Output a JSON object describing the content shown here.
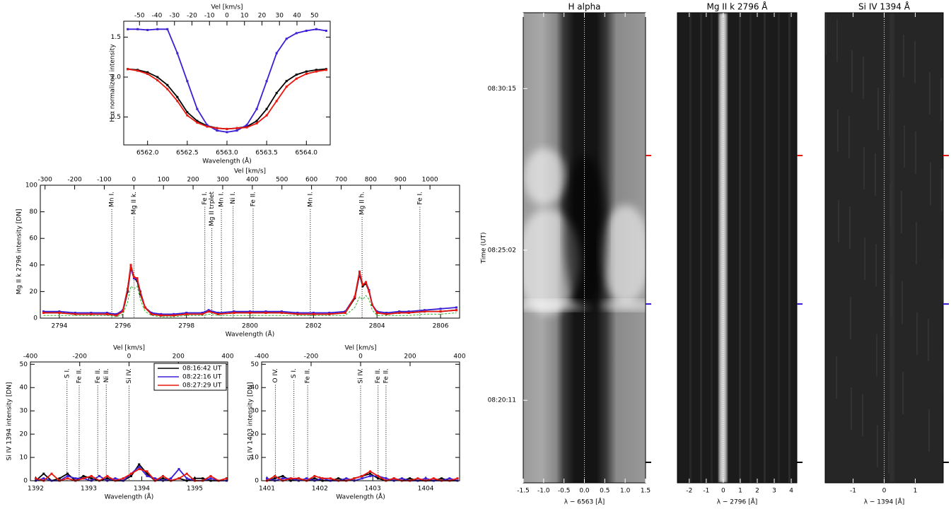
{
  "chart_data": [
    {
      "type": "line",
      "xlabel": "Wavelength (Å)",
      "ylabel": "H α normalized intensity",
      "x2label": "Vel [km/s]",
      "xlim": [
        6561.7,
        6564.3
      ],
      "xticks": [
        {
          "value": 6562,
          "label": "6562.0"
        },
        6562.5,
        {
          "value": 6563,
          "label": "6563.0"
        },
        6563.5,
        {
          "value": 6564,
          "label": "6564.0"
        }
      ],
      "x2lim": [
        -59,
        59
      ],
      "x2ticks": [
        -50,
        -40,
        -30,
        -20,
        -10,
        0,
        10,
        20,
        30,
        40,
        50
      ],
      "ylim": [
        0.15,
        1.7
      ],
      "yticks": [
        0.5,
        {
          "value": 1,
          "label": "1.0"
        },
        1.5
      ],
      "x": [
        6561.75,
        6561.875,
        6562.0,
        6562.125,
        6562.25,
        6562.375,
        6562.5,
        6562.625,
        6562.75,
        6562.875,
        6563.0,
        6563.125,
        6563.25,
        6563.375,
        6563.5,
        6563.625,
        6563.75,
        6563.875,
        6564.0,
        6564.125,
        6564.25
      ],
      "series": [
        {
          "color": "#000000",
          "values": [
            1.1,
            1.09,
            1.06,
            1.0,
            0.9,
            0.75,
            0.56,
            0.45,
            0.39,
            0.36,
            0.35,
            0.36,
            0.38,
            0.45,
            0.6,
            0.8,
            0.95,
            1.03,
            1.07,
            1.09,
            1.1
          ]
        },
        {
          "color": "#3a1fd6",
          "values": [
            1.6,
            1.6,
            1.59,
            1.6,
            1.6,
            1.3,
            0.95,
            0.6,
            0.4,
            0.33,
            0.31,
            0.33,
            0.4,
            0.6,
            0.95,
            1.3,
            1.48,
            1.55,
            1.58,
            1.6,
            1.58
          ]
        },
        {
          "color": "#e8160c",
          "values": [
            1.1,
            1.08,
            1.04,
            0.96,
            0.85,
            0.7,
            0.52,
            0.43,
            0.38,
            0.36,
            0.35,
            0.36,
            0.37,
            0.42,
            0.52,
            0.7,
            0.88,
            0.98,
            1.04,
            1.07,
            1.09
          ]
        }
      ]
    },
    {
      "type": "line",
      "xlabel": "Wavelength (Å)",
      "ylabel": "Mg II k 2796 intensity [DN]",
      "x2label": "Vel [km/s]",
      "xlim": [
        2793.4,
        2806.6
      ],
      "xticks": [
        2794,
        2796,
        2798,
        2800,
        2802,
        2804,
        2806
      ],
      "x2lim": [
        -316,
        1100
      ],
      "x2ticks": [
        -300,
        -200,
        -100,
        0,
        100,
        200,
        300,
        400,
        500,
        600,
        700,
        800,
        900,
        1000
      ],
      "ylim": [
        0,
        100
      ],
      "yticks": [
        0,
        20,
        40,
        60,
        80,
        100
      ],
      "x": [
        2793.5,
        2794.0,
        2794.5,
        2795.0,
        2795.5,
        2795.8,
        2796.0,
        2796.15,
        2796.25,
        2796.35,
        2796.45,
        2796.55,
        2796.7,
        2796.9,
        2797.2,
        2797.6,
        2798.0,
        2798.5,
        2798.7,
        2799.0,
        2799.5,
        2800.0,
        2800.5,
        2801.0,
        2801.5,
        2802.0,
        2802.5,
        2803.0,
        2803.3,
        2803.45,
        2803.55,
        2803.65,
        2803.75,
        2803.85,
        2804.0,
        2804.3,
        2804.7,
        2805.0,
        2805.5,
        2806.0,
        2806.5
      ],
      "series": [
        {
          "color": "#000000",
          "values": [
            4,
            4,
            3,
            3,
            3,
            2,
            5,
            20,
            38,
            30,
            28,
            18,
            8,
            3,
            2,
            2,
            3,
            3,
            5,
            3,
            4,
            4,
            4,
            4,
            3,
            3,
            3,
            4,
            15,
            33,
            24,
            26,
            20,
            10,
            4,
            3,
            4,
            4,
            5,
            5,
            6
          ]
        },
        {
          "color": "#3a1fd6",
          "values": [
            5,
            5,
            4,
            4,
            4,
            3,
            6,
            22,
            38,
            30,
            29,
            20,
            8,
            4,
            3,
            3,
            4,
            4,
            6,
            4,
            5,
            5,
            5,
            5,
            4,
            4,
            4,
            5,
            16,
            34,
            25,
            27,
            21,
            10,
            5,
            4,
            5,
            5,
            6,
            7,
            8
          ]
        },
        {
          "color": "#e8160c",
          "values": [
            4,
            4,
            3,
            3,
            3,
            2,
            5,
            22,
            40,
            31,
            30,
            19,
            8,
            3,
            2,
            2,
            3,
            3,
            5,
            3,
            4,
            4,
            4,
            4,
            3,
            3,
            3,
            4,
            16,
            35,
            25,
            27,
            20,
            10,
            4,
            3,
            4,
            4,
            5,
            5,
            6
          ]
        },
        {
          "color": "#2db52d",
          "dash": true,
          "values": [
            2,
            2,
            2,
            2,
            2,
            1,
            3,
            12,
            24,
            22,
            24,
            14,
            5,
            2,
            1,
            1,
            2,
            2,
            3,
            2,
            2,
            2,
            2,
            2,
            2,
            2,
            2,
            2,
            8,
            16,
            14,
            17,
            14,
            6,
            2,
            2,
            2,
            2,
            3,
            3,
            4
          ]
        }
      ],
      "lines": [
        {
          "label": "Mn I.",
          "x": 2795.65
        },
        {
          "label": "Mg II k.",
          "x": 2796.35
        },
        {
          "label": "Fe I.",
          "x": 2798.58
        },
        {
          "label": "Mg II trplet",
          "x": 2798.8
        },
        {
          "label": "Mn I.",
          "x": 2799.1
        },
        {
          "label": "Ni I.",
          "x": 2799.47
        },
        {
          "label": "Fe II.",
          "x": 2800.1
        },
        {
          "label": "Mn I.",
          "x": 2801.9
        },
        {
          "label": "Mg II h.",
          "x": 2803.53
        },
        {
          "label": "Fe I.",
          "x": 2805.35
        }
      ]
    },
    {
      "type": "line",
      "xlabel": "Wavelength (Å)",
      "ylabel": "Si IV 1394 intensity [DN]",
      "x2label": "Vel [km/s]",
      "legend": true,
      "xlim": [
        1391.9,
        1395.62
      ],
      "xticks": [
        1392,
        1393,
        1394,
        1395
      ],
      "x2lim": [
        -400,
        400
      ],
      "x2ticks": [
        -400,
        -200,
        0,
        200,
        400
      ],
      "ylim": [
        0,
        51
      ],
      "yticks": [
        0,
        10,
        20,
        30,
        40,
        50
      ],
      "x": [
        1392.0,
        1392.15,
        1392.3,
        1392.45,
        1392.6,
        1392.75,
        1392.9,
        1393.05,
        1393.2,
        1393.35,
        1393.5,
        1393.65,
        1393.8,
        1393.95,
        1394.1,
        1394.25,
        1394.4,
        1394.55,
        1394.7,
        1394.85,
        1395.0,
        1395.15,
        1395.3,
        1395.45,
        1395.6
      ],
      "series": [
        {
          "name": "08:16:42 UT",
          "color": "#000000",
          "values": [
            0,
            3,
            0,
            1,
            3,
            0,
            2,
            1,
            0,
            1,
            0,
            0,
            2,
            7,
            3,
            0,
            1,
            0,
            1,
            0,
            1,
            1,
            0,
            0,
            1
          ]
        },
        {
          "name": "08:22:16 UT",
          "color": "#3a1fd6",
          "values": [
            0,
            1,
            0,
            0,
            2,
            1,
            1,
            0,
            2,
            0,
            1,
            0,
            3,
            6,
            2,
            1,
            0,
            1,
            5,
            1,
            0,
            0,
            1,
            0,
            0
          ]
        },
        {
          "name": "08:27:29 UT",
          "color": "#e8160c",
          "values": [
            1,
            0,
            3,
            0,
            1,
            0,
            1,
            2,
            0,
            2,
            0,
            1,
            3,
            5,
            4,
            0,
            2,
            0,
            1,
            3,
            0,
            0,
            2,
            0,
            1
          ]
        }
      ],
      "lines": [
        {
          "label": "S I.",
          "x": 1392.59
        },
        {
          "label": "Fe II.",
          "x": 1392.82
        },
        {
          "label": "Fe II.",
          "x": 1393.17
        },
        {
          "label": "Ni II.",
          "x": 1393.33
        },
        {
          "label": "Si IV.",
          "x": 1393.76
        }
      ]
    },
    {
      "type": "line",
      "xlabel": "Wavelength (Å)",
      "ylabel": "Si IV 1403 intensity [DN]",
      "x2label": "Vel [km/s]",
      "xlim": [
        1400.9,
        1404.64
      ],
      "xticks": [
        1401,
        1402,
        1403,
        1404
      ],
      "x2lim": [
        -400,
        400
      ],
      "x2ticks": [
        -400,
        -200,
        0,
        200,
        400
      ],
      "ylim": [
        0,
        51
      ],
      "yticks": [
        0,
        10,
        20,
        30,
        40,
        50
      ],
      "x": [
        1401.0,
        1401.15,
        1401.3,
        1401.45,
        1401.6,
        1401.75,
        1401.9,
        1402.05,
        1402.2,
        1402.35,
        1402.5,
        1402.65,
        1402.8,
        1402.95,
        1403.1,
        1403.25,
        1403.4,
        1403.55,
        1403.7,
        1403.85,
        1404.0,
        1404.15,
        1404.3,
        1404.45,
        1404.6
      ],
      "series": [
        {
          "color": "#000000",
          "values": [
            0,
            1,
            2,
            0,
            1,
            0,
            1,
            0,
            0,
            1,
            0,
            1,
            2,
            3,
            1,
            0,
            1,
            0,
            1,
            0,
            0,
            0,
            1,
            0,
            0
          ]
        },
        {
          "color": "#3a1fd6",
          "values": [
            1,
            0,
            1,
            1,
            0,
            1,
            0,
            1,
            0,
            0,
            1,
            0,
            1,
            2,
            2,
            1,
            0,
            1,
            0,
            0,
            1,
            0,
            0,
            1,
            0
          ]
        },
        {
          "color": "#e8160c",
          "values": [
            0,
            2,
            0,
            1,
            1,
            0,
            2,
            1,
            1,
            0,
            0,
            1,
            2,
            4,
            2,
            0,
            1,
            0,
            0,
            1,
            0,
            1,
            0,
            0,
            1
          ]
        }
      ],
      "lines": [
        {
          "label": "O IV.",
          "x": 1401.16
        },
        {
          "label": "S I.",
          "x": 1401.51
        },
        {
          "label": "Fe II.",
          "x": 1401.77
        },
        {
          "label": "Si IV.",
          "x": 1402.77
        },
        {
          "label": "Fe II.",
          "x": 1403.1
        },
        {
          "label": "Fe II.",
          "x": 1403.25
        }
      ]
    },
    {
      "type": "image",
      "title": "H alpha",
      "xlabel": "λ − 6563 [Å]",
      "ylabel": "Time (UT)",
      "xlim": [
        -1.5,
        1.5
      ],
      "xticks": [
        -1.5,
        {
          "value": -1,
          "label": "-1.0"
        },
        -0.5,
        {
          "value": 0,
          "label": "0.0"
        },
        0.5,
        {
          "value": 1,
          "label": "1.0"
        },
        1.5
      ],
      "ylim": [
        "08:17:31",
        "08:32:42"
      ],
      "yticks": [
        "08:30:15",
        "08:25:02",
        "08:20:11"
      ]
    },
    {
      "type": "image",
      "title": "Mg II k 2796 Å",
      "xlabel": "λ − 2796 [Å]",
      "xlim": [
        -2.7,
        4.33
      ],
      "xticks": [
        -2,
        -1,
        0,
        1,
        2,
        3,
        4
      ]
    },
    {
      "type": "image",
      "title": "Si IV 1394 Å",
      "xlabel": "λ − 1394 [Å]",
      "xlim": [
        -1.9,
        1.9
      ],
      "xticks": [
        -1,
        0,
        1
      ]
    }
  ]
}
